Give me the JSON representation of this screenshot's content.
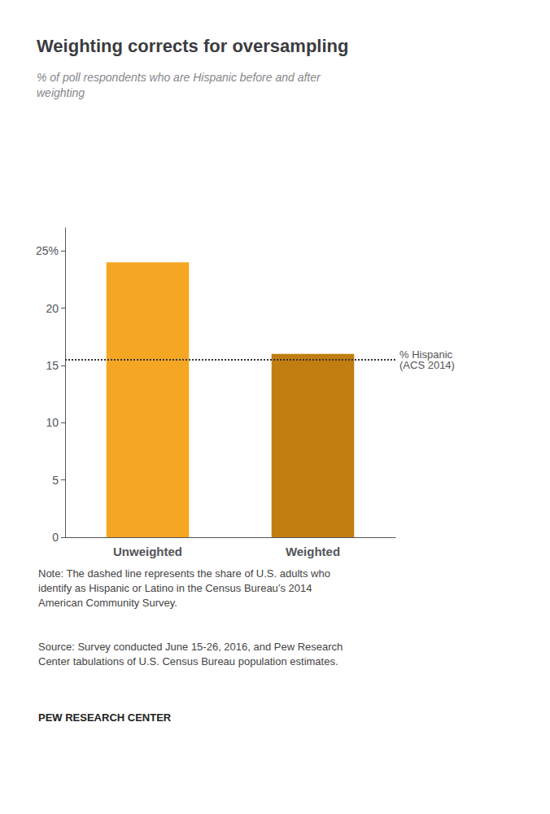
{
  "chart_data": {
    "type": "bar",
    "title": "Weighting corrects for oversampling",
    "subtitle": "% of poll respondents who are Hispanic before and after\nweighting",
    "categories": [
      "Unweighted",
      "Weighted"
    ],
    "values": [
      24,
      16
    ],
    "colors": [
      "#F5A623",
      "#C07D10"
    ],
    "reference_line": {
      "value": 15.5,
      "label": "% Hispanic\n(ACS 2014)",
      "color": "#333333"
    },
    "ylim": [
      0,
      27
    ],
    "yticks": [
      0,
      5,
      10,
      15,
      20,
      {
        "value": 25,
        "label": "25%"
      }
    ],
    "grid": false,
    "note": "Note: The dashed line represents the share of U.S. adults who\nidentify as Hispanic or Latino in the Census Bureau’s 2014\nAmerican Community Survey.",
    "source": "Source: Survey conducted June 15-26, 2016, and Pew Research\nCenter tabulations of U.S. Census Bureau population estimates.",
    "branding": "PEW RESEARCH CENTER"
  }
}
